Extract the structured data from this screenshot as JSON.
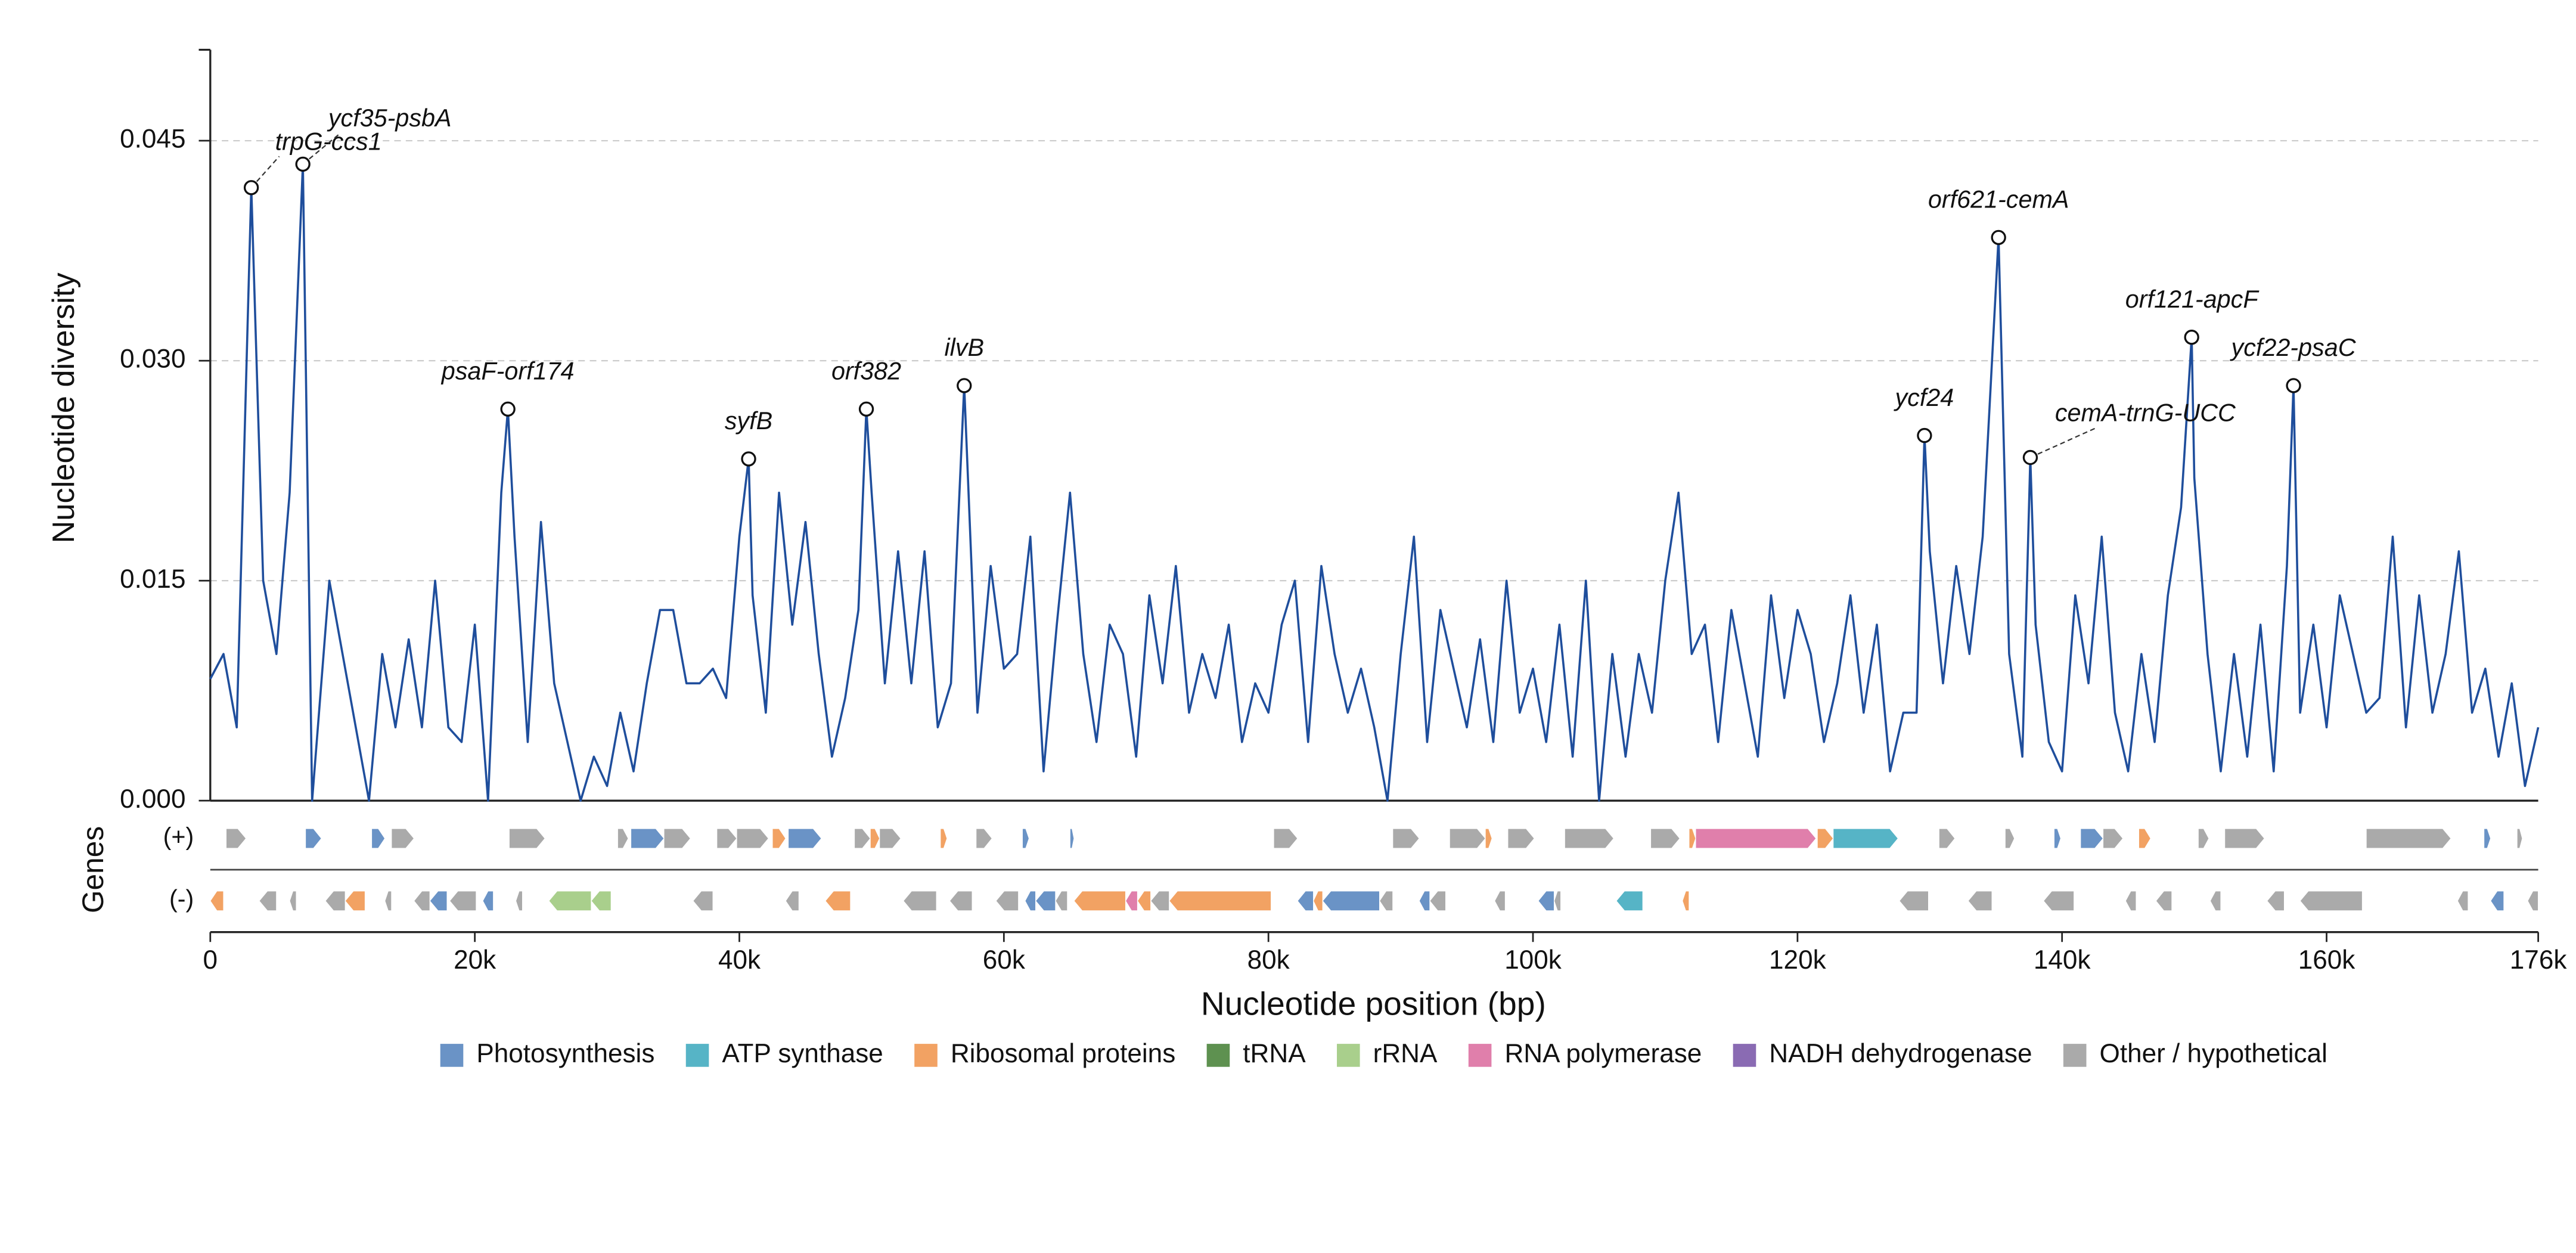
{
  "chart_data": {
    "type": "line",
    "x": [
      0,
      1000,
      2000,
      3100,
      4000,
      5000,
      6000,
      7000,
      7700,
      9000,
      10000,
      11000,
      12000,
      13000,
      14000,
      15000,
      16000,
      17000,
      18000,
      19000,
      20000,
      21000,
      22000,
      22500,
      23000,
      24000,
      25000,
      26000,
      27000,
      28000,
      29000,
      30000,
      31000,
      32000,
      33000,
      34000,
      35000,
      36000,
      37000,
      38000,
      39000,
      40000,
      40700,
      41000,
      42000,
      43000,
      44000,
      45000,
      46000,
      47000,
      48000,
      49000,
      49600,
      50000,
      51000,
      52000,
      53000,
      54000,
      55000,
      56000,
      57000,
      58000,
      59000,
      60000,
      61000,
      62000,
      63000,
      64000,
      65000,
      66000,
      67000,
      68000,
      69000,
      70000,
      71000,
      72000,
      73000,
      74000,
      75000,
      76000,
      77000,
      78000,
      79000,
      80000,
      81000,
      82000,
      83000,
      84000,
      85000,
      86000,
      87000,
      88000,
      89000,
      90000,
      91000,
      92000,
      93000,
      94000,
      95000,
      96000,
      97000,
      98000,
      99000,
      100000,
      101000,
      102000,
      103000,
      104000,
      105000,
      106000,
      107000,
      108000,
      109000,
      110000,
      111000,
      112000,
      113000,
      114000,
      115000,
      116000,
      117000,
      118000,
      119000,
      120000,
      121000,
      122000,
      123000,
      124000,
      125000,
      126000,
      127000,
      128000,
      129000,
      129600,
      130000,
      131000,
      132000,
      133000,
      134000,
      135200,
      136000,
      137000,
      137600,
      138000,
      139000,
      140000,
      141000,
      142000,
      143000,
      144000,
      145000,
      146000,
      147000,
      148000,
      149000,
      149800,
      150000,
      151000,
      152000,
      153000,
      154000,
      155000,
      156000,
      157000,
      157500,
      158000,
      159000,
      160000,
      161000,
      162000,
      163000,
      164000,
      165000,
      166000,
      167000,
      168000,
      169000,
      170000,
      171000,
      172000,
      173000,
      174000,
      175000,
      176000
    ],
    "values": [
      0.0083,
      0.01,
      0.005,
      0.0418,
      0.015,
      0.01,
      0.021,
      0.0434,
      0,
      0.015,
      0.01,
      0.005,
      0,
      0.01,
      0.005,
      0.011,
      0.005,
      0.015,
      0.005,
      0.004,
      0.012,
      0,
      0.021,
      0.0267,
      0.018,
      0.004,
      0.019,
      0.008,
      0.004,
      0,
      0.003,
      0.001,
      0.006,
      0.002,
      0.008,
      0.013,
      0.013,
      0.008,
      0.008,
      0.009,
      0.007,
      0.018,
      0.0233,
      0.014,
      0.006,
      0.021,
      0.012,
      0.019,
      0.01,
      0.003,
      0.007,
      0.013,
      0.0267,
      0.021,
      0.008,
      0.017,
      0.008,
      0.017,
      0.005,
      0.008,
      0.0283,
      0.006,
      0.016,
      0.009,
      0.01,
      0.018,
      0.002,
      0.012,
      0.021,
      0.01,
      0.004,
      0.012,
      0.01,
      0.003,
      0.014,
      0.008,
      0.016,
      0.006,
      0.01,
      0.007,
      0.012,
      0.004,
      0.008,
      0.006,
      0.012,
      0.015,
      0.004,
      0.016,
      0.01,
      0.006,
      0.009,
      0.005,
      0,
      0.01,
      0.018,
      0.004,
      0.013,
      0.009,
      0.005,
      0.011,
      0.004,
      0.015,
      0.006,
      0.009,
      0.004,
      0.012,
      0.003,
      0.015,
      0,
      0.01,
      0.003,
      0.01,
      0.006,
      0.015,
      0.021,
      0.01,
      0.012,
      0.004,
      0.013,
      0.008,
      0.003,
      0.014,
      0.007,
      0.013,
      0.01,
      0.004,
      0.008,
      0.014,
      0.006,
      0.012,
      0.002,
      0.006,
      0.006,
      0.0249,
      0.017,
      0.008,
      0.016,
      0.01,
      0.018,
      0.0384,
      0.01,
      0.003,
      0.0234,
      0.012,
      0.004,
      0.002,
      0.014,
      0.008,
      0.018,
      0.006,
      0.002,
      0.01,
      0.004,
      0.014,
      0.02,
      0.0316,
      0.022,
      0.01,
      0.002,
      0.01,
      0.003,
      0.012,
      0.002,
      0.016,
      0.0283,
      0.006,
      0.012,
      0.005,
      0.014,
      0.01,
      0.006,
      0.007,
      0.018,
      0.005,
      0.014,
      0.006,
      0.01,
      0.017,
      0.006,
      0.009,
      0.003,
      0.008,
      0.001,
      0.005
    ],
    "color": "#1f4e9c",
    "ylabel": "Nucleotide diversity",
    "xlabel": "Nucleotide position (bp)",
    "ylim": [
      0,
      0.0512
    ],
    "yticks": [
      {
        "value": 0,
        "label": "0.000"
      },
      {
        "value": 0.015,
        "label": "0.015"
      },
      {
        "value": 0.03,
        "label": "0.030"
      },
      {
        "value": 0.045,
        "label": "0.045"
      }
    ],
    "xlim": [
      0,
      176000
    ],
    "xticks": [
      0,
      {
        "value": 20000,
        "label": "20k"
      },
      {
        "value": 40000,
        "label": "40k"
      },
      {
        "value": 60000,
        "label": "60k"
      },
      {
        "value": 80000,
        "label": "80k"
      },
      {
        "value": 100000,
        "label": "100k"
      },
      {
        "value": 120000,
        "label": "120k"
      },
      {
        "value": 140000,
        "label": "140k"
      },
      {
        "value": 160000,
        "label": "160k"
      },
      {
        "value": 176000,
        "label": "176k"
      }
    ],
    "grid": true,
    "annotations": [
      {
        "label": "trpG-ccs1",
        "x": 3100,
        "y": 0.0418
      },
      {
        "label": "ycf35-psbA",
        "x": 7000,
        "y": 0.0434
      },
      {
        "label": "psaF-orf174",
        "x": 22500,
        "y": 0.0267
      },
      {
        "label": "syfB",
        "x": 40700,
        "y": 0.0233
      },
      {
        "label": "orf382",
        "x": 49600,
        "y": 0.0267
      },
      {
        "label": "ilvB",
        "x": 57000,
        "y": 0.0283
      },
      {
        "label": "ycf24",
        "x": 129600,
        "y": 0.0249
      },
      {
        "label": "orf621-cemA",
        "x": 135200,
        "y": 0.0384
      },
      {
        "label": "cemA-trnG-UCC",
        "x": 137600,
        "y": 0.0234
      },
      {
        "label": "orf121-apcF",
        "x": 149800,
        "y": 0.0316
      },
      {
        "label": "ycf22-psaC",
        "x": 157500,
        "y": 0.0283
      }
    ],
    "gene_track_label": "Genes",
    "legend": [
      {
        "name": "Photosynthesis",
        "color": "#6a93c6"
      },
      {
        "name": "ATP synthase",
        "color": "#56b4c6"
      },
      {
        "name": "Ribosomal proteins",
        "color": "#f2a263"
      },
      {
        "name": "tRNA",
        "color": "#5e9150"
      },
      {
        "name": "rRNA",
        "color": "#a9cf8c"
      },
      {
        "name": "RNA polymerase",
        "color": "#e07fab"
      },
      {
        "name": "NADH dehydrogenase",
        "color": "#8a6bb3"
      },
      {
        "name": "Other / hypothetical",
        "color": "#aaaaaa"
      }
    ],
    "gene_tracks": [
      {
        "label": "(+)",
        "genes": [
          {
            "start": 1200,
            "end": 2700,
            "category": "Other / hypothetical"
          },
          {
            "start": 7200,
            "end": 8400,
            "category": "Photosynthesis"
          },
          {
            "start": 12200,
            "end": 13200,
            "category": "Photosynthesis"
          },
          {
            "start": 13700,
            "end": 15400,
            "category": "Other / hypothetical"
          },
          {
            "start": 22600,
            "end": 25300,
            "category": "Other / hypothetical"
          },
          {
            "start": 30800,
            "end": 31600,
            "category": "Other / hypothetical"
          },
          {
            "start": 31800,
            "end": 34300,
            "category": "Photosynthesis"
          },
          {
            "start": 34300,
            "end": 36300,
            "category": "Other / hypothetical"
          },
          {
            "start": 38300,
            "end": 39800,
            "category": "Other / hypothetical"
          },
          {
            "start": 39800,
            "end": 42200,
            "category": "Other / hypothetical"
          },
          {
            "start": 42500,
            "end": 43500,
            "category": "Ribosomal proteins"
          },
          {
            "start": 43700,
            "end": 46200,
            "category": "Photosynthesis"
          },
          {
            "start": 48700,
            "end": 49900,
            "category": "Other / hypothetical"
          },
          {
            "start": 49900,
            "end": 50600,
            "category": "Ribosomal proteins"
          },
          {
            "start": 50600,
            "end": 52200,
            "category": "Other / hypothetical"
          },
          {
            "start": 55200,
            "end": 55700,
            "category": "Ribosomal proteins"
          },
          {
            "start": 57900,
            "end": 59100,
            "category": "Other / hypothetical"
          },
          {
            "start": 61400,
            "end": 61900,
            "category": "Photosynthesis"
          },
          {
            "start": 65000,
            "end": 65300,
            "category": "Photosynthesis"
          },
          {
            "start": 80400,
            "end": 82200,
            "category": "Other / hypothetical"
          },
          {
            "start": 89400,
            "end": 91400,
            "category": "Other / hypothetical"
          },
          {
            "start": 93700,
            "end": 96400,
            "category": "Other / hypothetical"
          },
          {
            "start": 96400,
            "end": 96900,
            "category": "Ribosomal proteins"
          },
          {
            "start": 98100,
            "end": 100100,
            "category": "Other / hypothetical"
          },
          {
            "start": 102400,
            "end": 106100,
            "category": "Other / hypothetical"
          },
          {
            "start": 108900,
            "end": 111100,
            "category": "Other / hypothetical"
          },
          {
            "start": 111800,
            "end": 112300,
            "category": "Ribosomal proteins"
          },
          {
            "start": 112300,
            "end": 121400,
            "category": "RNA polymerase"
          },
          {
            "start": 121500,
            "end": 122700,
            "category": "Ribosomal proteins"
          },
          {
            "start": 122700,
            "end": 127600,
            "category": "ATP synthase"
          },
          {
            "start": 130700,
            "end": 131900,
            "category": "Other / hypothetical"
          },
          {
            "start": 135700,
            "end": 136400,
            "category": "Other / hypothetical"
          },
          {
            "start": 139400,
            "end": 139900,
            "category": "Photosynthesis"
          },
          {
            "start": 141400,
            "end": 143100,
            "category": "Photosynthesis"
          },
          {
            "start": 143100,
            "end": 144600,
            "category": "Other / hypothetical"
          },
          {
            "start": 145800,
            "end": 146700,
            "category": "Ribosomal proteins"
          },
          {
            "start": 150300,
            "end": 151100,
            "category": "Other / hypothetical"
          },
          {
            "start": 152300,
            "end": 155300,
            "category": "Other / hypothetical"
          },
          {
            "start": 163000,
            "end": 169400,
            "category": "Other / hypothetical"
          },
          {
            "start": 171900,
            "end": 172400,
            "category": "Photosynthesis"
          },
          {
            "start": 174400,
            "end": 174800,
            "category": "Other / hypothetical"
          }
        ]
      },
      {
        "label": "(-)",
        "genes": [
          {
            "start": 0,
            "end": 1000,
            "category": "Ribosomal proteins"
          },
          {
            "start": 3700,
            "end": 5000,
            "category": "Other / hypothetical"
          },
          {
            "start": 6000,
            "end": 6500,
            "category": "Other / hypothetical"
          },
          {
            "start": 8700,
            "end": 10200,
            "category": "Other / hypothetical"
          },
          {
            "start": 10200,
            "end": 11700,
            "category": "Ribosomal proteins"
          },
          {
            "start": 13200,
            "end": 13700,
            "category": "Other / hypothetical"
          },
          {
            "start": 15400,
            "end": 16600,
            "category": "Other / hypothetical"
          },
          {
            "start": 16600,
            "end": 17900,
            "category": "Photosynthesis"
          },
          {
            "start": 18100,
            "end": 20100,
            "category": "Other / hypothetical"
          },
          {
            "start": 20600,
            "end": 21400,
            "category": "Photosynthesis"
          },
          {
            "start": 23100,
            "end": 23600,
            "category": "Other / hypothetical"
          },
          {
            "start": 25600,
            "end": 28800,
            "category": "rRNA"
          },
          {
            "start": 28800,
            "end": 30300,
            "category": "rRNA"
          },
          {
            "start": 36500,
            "end": 38000,
            "category": "Other / hypothetical"
          },
          {
            "start": 43500,
            "end": 44500,
            "category": "Other / hypothetical"
          },
          {
            "start": 46500,
            "end": 48400,
            "category": "Ribosomal proteins"
          },
          {
            "start": 52400,
            "end": 54900,
            "category": "Other / hypothetical"
          },
          {
            "start": 55900,
            "end": 57600,
            "category": "Other / hypothetical"
          },
          {
            "start": 59400,
            "end": 61100,
            "category": "Other / hypothetical"
          },
          {
            "start": 61600,
            "end": 62400,
            "category": "Photosynthesis"
          },
          {
            "start": 62400,
            "end": 63900,
            "category": "Photosynthesis"
          },
          {
            "start": 63900,
            "end": 64800,
            "category": "Other / hypothetical"
          },
          {
            "start": 65300,
            "end": 69200,
            "category": "Ribosomal proteins"
          },
          {
            "start": 69200,
            "end": 70100,
            "category": "RNA polymerase"
          },
          {
            "start": 70100,
            "end": 71100,
            "category": "Ribosomal proteins"
          },
          {
            "start": 71100,
            "end": 72500,
            "category": "Other / hypothetical"
          },
          {
            "start": 72500,
            "end": 80200,
            "category": "Ribosomal proteins"
          },
          {
            "start": 82200,
            "end": 83400,
            "category": "Photosynthesis"
          },
          {
            "start": 83400,
            "end": 84100,
            "category": "Ribosomal proteins"
          },
          {
            "start": 84100,
            "end": 88400,
            "category": "Photosynthesis"
          },
          {
            "start": 88400,
            "end": 89400,
            "category": "Other / hypothetical"
          },
          {
            "start": 91400,
            "end": 92200,
            "category": "Photosynthesis"
          },
          {
            "start": 92200,
            "end": 93400,
            "category": "Other / hypothetical"
          },
          {
            "start": 97100,
            "end": 97900,
            "category": "Other / hypothetical"
          },
          {
            "start": 100400,
            "end": 101600,
            "category": "Photosynthesis"
          },
          {
            "start": 101600,
            "end": 102100,
            "category": "Other / hypothetical"
          },
          {
            "start": 106300,
            "end": 108300,
            "category": "ATP synthase"
          },
          {
            "start": 111300,
            "end": 111800,
            "category": "Ribosomal proteins"
          },
          {
            "start": 127700,
            "end": 129900,
            "category": "Other / hypothetical"
          },
          {
            "start": 132900,
            "end": 134700,
            "category": "Other / hypothetical"
          },
          {
            "start": 138600,
            "end": 140900,
            "category": "Other / hypothetical"
          },
          {
            "start": 144800,
            "end": 145600,
            "category": "Other / hypothetical"
          },
          {
            "start": 147100,
            "end": 148300,
            "category": "Other / hypothetical"
          },
          {
            "start": 151200,
            "end": 152000,
            "category": "Other / hypothetical"
          },
          {
            "start": 155500,
            "end": 156800,
            "category": "Other / hypothetical"
          },
          {
            "start": 158000,
            "end": 162700,
            "category": "Other / hypothetical"
          },
          {
            "start": 169900,
            "end": 170700,
            "category": "Other / hypothetical"
          },
          {
            "start": 172400,
            "end": 173400,
            "category": "Photosynthesis"
          },
          {
            "start": 175200,
            "end": 176000,
            "category": "Other / hypothetical"
          }
        ]
      }
    ]
  }
}
